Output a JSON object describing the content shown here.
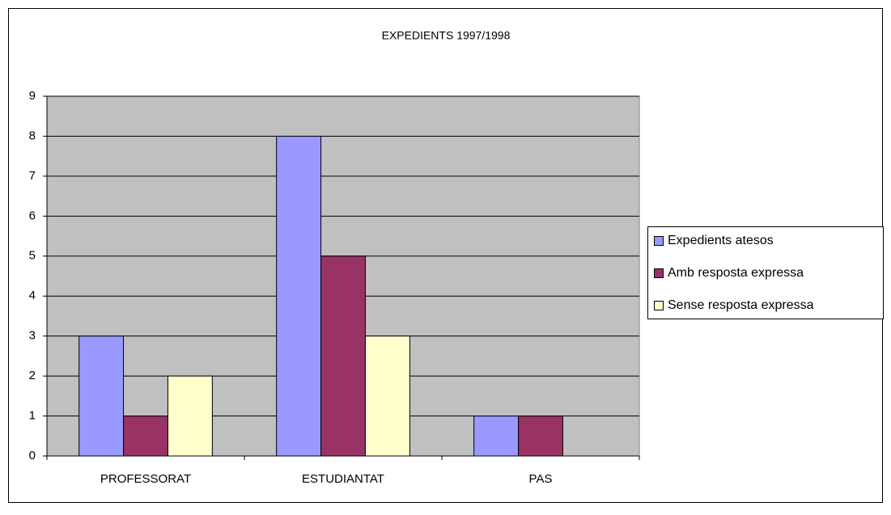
{
  "chart_data": {
    "type": "bar",
    "title": "EXPEDIENTS 1997/1998",
    "categories": [
      "PROFESSORAT",
      "ESTUDIANTAT",
      "PAS"
    ],
    "series": [
      {
        "name": "Expedients atesos",
        "color": "#9999ff",
        "values": [
          3,
          8,
          1
        ]
      },
      {
        "name": "Amb resposta expressa",
        "color": "#993366",
        "values": [
          1,
          5,
          1
        ]
      },
      {
        "name": "Sense resposta expressa",
        "color": "#ffffcc",
        "values": [
          2,
          3,
          0
        ]
      }
    ],
    "ylim": [
      0,
      9
    ],
    "yticks": [
      0,
      1,
      2,
      3,
      4,
      5,
      6,
      7,
      8,
      9
    ],
    "grid": true,
    "legend": "right"
  }
}
